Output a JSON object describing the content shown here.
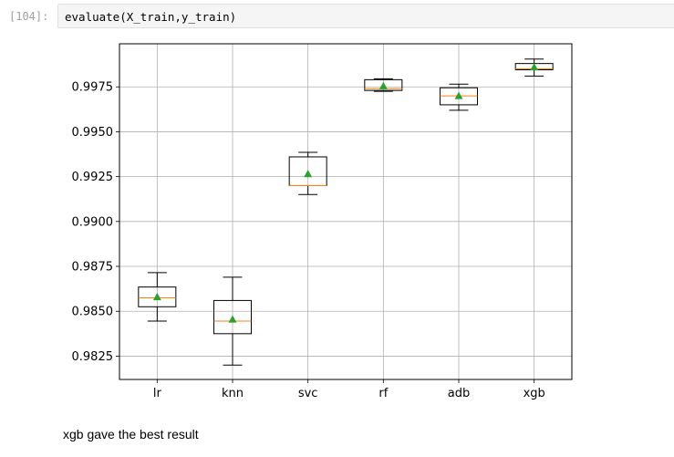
{
  "cell": {
    "prompt": "[104]:",
    "code": "evaluate(X_train,y_train)"
  },
  "markdown": {
    "text": "xgb gave the best result"
  },
  "chart_data": {
    "type": "box",
    "categories": [
      "lr",
      "knn",
      "svc",
      "rf",
      "adb",
      "xgb"
    ],
    "ylim": [
      0.9812,
      0.9999
    ],
    "yticks": [
      0.9825,
      0.985,
      0.9875,
      0.99,
      0.9925,
      0.995,
      0.9975
    ],
    "ytick_labels": [
      "0.9825",
      "0.9850",
      "0.9875",
      "0.9900",
      "0.9925",
      "0.9950",
      "0.9975"
    ],
    "grid": true,
    "show_means": true,
    "title": "",
    "xlabel": "",
    "ylabel": "",
    "colors": {
      "box": "#000000",
      "median": "#ff7f0e",
      "mean": "#2ca02c",
      "grid": "#b0b0b0"
    },
    "boxes": [
      {
        "label": "lr",
        "whislo": 0.98445,
        "q1": 0.98525,
        "med": 0.98575,
        "q3": 0.98635,
        "whishi": 0.98715,
        "mean": 0.9858
      },
      {
        "label": "knn",
        "whislo": 0.982,
        "q1": 0.98375,
        "med": 0.98445,
        "q3": 0.9856,
        "whishi": 0.9869,
        "mean": 0.98455
      },
      {
        "label": "svc",
        "whislo": 0.9915,
        "q1": 0.992,
        "med": 0.992,
        "q3": 0.9936,
        "whishi": 0.99385,
        "mean": 0.99265
      },
      {
        "label": "rf",
        "whislo": 0.99725,
        "q1": 0.9973,
        "med": 0.9974,
        "q3": 0.9979,
        "whishi": 0.99795,
        "mean": 0.99755
      },
      {
        "label": "adb",
        "whislo": 0.9962,
        "q1": 0.9965,
        "med": 0.997,
        "q3": 0.99745,
        "whishi": 0.99765,
        "mean": 0.997
      },
      {
        "label": "xgb",
        "whislo": 0.9981,
        "q1": 0.99845,
        "med": 0.9985,
        "q3": 0.9988,
        "whishi": 0.99905,
        "mean": 0.9986
      }
    ]
  }
}
